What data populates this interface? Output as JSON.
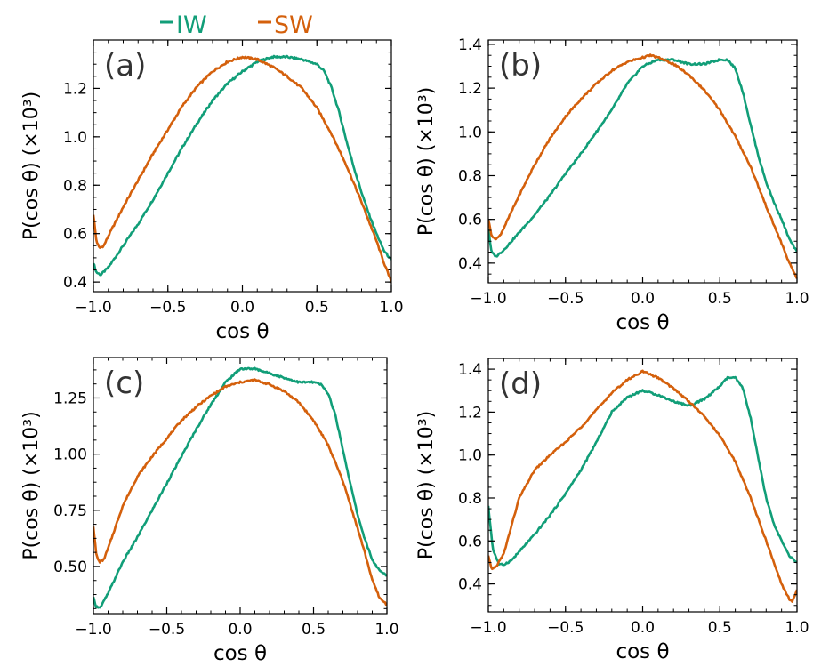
{
  "legend": [
    {
      "label": "IW",
      "color": "#119e78"
    },
    {
      "label": "SW",
      "color": "#d4600c"
    }
  ],
  "chart_data": [
    {
      "panel": "(a)",
      "type": "line",
      "xlabel": "cos θ",
      "ylabel": "P(cos θ) (×10³)",
      "xlim": [
        -1.0,
        1.0
      ],
      "ylim": [
        0.36,
        1.4
      ],
      "yticks": [
        0.4,
        0.6,
        0.8,
        1.0,
        1.2
      ],
      "ytick_labels": [
        "0.4",
        "0.6",
        "0.8",
        "1.0",
        "1.2"
      ],
      "xticks": [
        -1.0,
        -0.5,
        0.0,
        0.5,
        1.0
      ],
      "xtick_labels": [
        "−1.0",
        "−0.5",
        "0.0",
        "0.5",
        "1.0"
      ],
      "series": [
        {
          "name": "IW",
          "color": "#119e78",
          "x": [
            -1.0,
            -0.98,
            -0.95,
            -0.9,
            -0.8,
            -0.7,
            -0.6,
            -0.5,
            -0.4,
            -0.3,
            -0.2,
            -0.1,
            0.0,
            0.1,
            0.2,
            0.3,
            0.4,
            0.5,
            0.55,
            0.6,
            0.65,
            0.7,
            0.75,
            0.8,
            0.85,
            0.9,
            0.95,
            1.0
          ],
          "y": [
            0.48,
            0.44,
            0.43,
            0.46,
            0.55,
            0.64,
            0.74,
            0.85,
            0.96,
            1.06,
            1.15,
            1.22,
            1.27,
            1.31,
            1.33,
            1.33,
            1.32,
            1.3,
            1.27,
            1.2,
            1.1,
            0.98,
            0.87,
            0.77,
            0.68,
            0.6,
            0.53,
            0.49
          ]
        },
        {
          "name": "SW",
          "color": "#d4600c",
          "x": [
            -1.0,
            -0.98,
            -0.96,
            -0.93,
            -0.9,
            -0.8,
            -0.7,
            -0.6,
            -0.5,
            -0.4,
            -0.3,
            -0.2,
            -0.1,
            0.0,
            0.1,
            0.2,
            0.3,
            0.4,
            0.5,
            0.6,
            0.7,
            0.8,
            0.9,
            0.95,
            1.0
          ],
          "y": [
            0.68,
            0.57,
            0.54,
            0.55,
            0.59,
            0.71,
            0.82,
            0.93,
            1.03,
            1.13,
            1.21,
            1.27,
            1.31,
            1.33,
            1.32,
            1.29,
            1.25,
            1.2,
            1.12,
            1.01,
            0.88,
            0.73,
            0.57,
            0.48,
            0.4
          ]
        }
      ]
    },
    {
      "panel": "(b)",
      "type": "line",
      "xlabel": "cos θ",
      "ylabel": "P(cos θ) (×10³)",
      "xlim": [
        -1.0,
        1.0
      ],
      "ylim": [
        0.31,
        1.42
      ],
      "yticks": [
        0.4,
        0.6,
        0.8,
        1.0,
        1.2,
        1.4
      ],
      "ytick_labels": [
        "0.4",
        "0.6",
        "0.8",
        "1.0",
        "1.2",
        "1.4"
      ],
      "xticks": [
        -1.0,
        -0.5,
        0.0,
        0.5,
        1.0
      ],
      "xtick_labels": [
        "−1.0",
        "−0.5",
        "0.0",
        "0.5",
        "1.0"
      ],
      "series": [
        {
          "name": "IW",
          "color": "#119e78",
          "x": [
            -1.0,
            -0.98,
            -0.95,
            -0.9,
            -0.8,
            -0.7,
            -0.6,
            -0.5,
            -0.4,
            -0.3,
            -0.2,
            -0.1,
            0.0,
            0.1,
            0.2,
            0.3,
            0.4,
            0.5,
            0.55,
            0.6,
            0.65,
            0.7,
            0.75,
            0.8,
            0.85,
            0.9,
            0.95,
            1.0
          ],
          "y": [
            0.56,
            0.45,
            0.43,
            0.46,
            0.54,
            0.62,
            0.71,
            0.81,
            0.9,
            1.0,
            1.1,
            1.22,
            1.3,
            1.33,
            1.33,
            1.31,
            1.31,
            1.33,
            1.33,
            1.29,
            1.18,
            1.03,
            0.89,
            0.77,
            0.68,
            0.6,
            0.51,
            0.45
          ]
        },
        {
          "name": "SW",
          "color": "#d4600c",
          "x": [
            -1.0,
            -0.98,
            -0.96,
            -0.93,
            -0.9,
            -0.8,
            -0.7,
            -0.6,
            -0.5,
            -0.4,
            -0.3,
            -0.2,
            -0.1,
            0.0,
            0.05,
            0.1,
            0.2,
            0.3,
            0.4,
            0.5,
            0.6,
            0.7,
            0.8,
            0.9,
            0.95,
            1.0
          ],
          "y": [
            0.6,
            0.53,
            0.51,
            0.52,
            0.56,
            0.71,
            0.85,
            0.97,
            1.07,
            1.15,
            1.22,
            1.28,
            1.32,
            1.34,
            1.35,
            1.34,
            1.31,
            1.26,
            1.19,
            1.1,
            0.98,
            0.84,
            0.66,
            0.49,
            0.4,
            0.33
          ]
        }
      ]
    },
    {
      "panel": "(c)",
      "type": "line",
      "xlabel": "cos θ",
      "ylabel": "P(cos θ) (×10³)",
      "xlim": [
        -1.0,
        1.0
      ],
      "ylim": [
        0.29,
        1.43
      ],
      "yticks": [
        0.5,
        0.75,
        1.0,
        1.25
      ],
      "ytick_labels": [
        "0.50",
        "0.75",
        "1.00",
        "1.25"
      ],
      "xticks": [
        -1.0,
        -0.5,
        0.0,
        0.5,
        1.0
      ],
      "xtick_labels": [
        "−1.0",
        "−0.5",
        "0.0",
        "0.5",
        "1.0"
      ],
      "series": [
        {
          "name": "IW",
          "color": "#119e78",
          "x": [
            -1.0,
            -0.98,
            -0.95,
            -0.9,
            -0.8,
            -0.7,
            -0.6,
            -0.5,
            -0.4,
            -0.3,
            -0.2,
            -0.1,
            0.0,
            0.1,
            0.2,
            0.3,
            0.4,
            0.5,
            0.55,
            0.6,
            0.65,
            0.7,
            0.75,
            0.8,
            0.85,
            0.9,
            0.95,
            1.0
          ],
          "y": [
            0.36,
            0.32,
            0.32,
            0.38,
            0.52,
            0.63,
            0.75,
            0.87,
            0.99,
            1.11,
            1.22,
            1.32,
            1.38,
            1.38,
            1.36,
            1.34,
            1.32,
            1.32,
            1.31,
            1.27,
            1.17,
            1.02,
            0.87,
            0.73,
            0.62,
            0.53,
            0.48,
            0.46
          ]
        },
        {
          "name": "SW",
          "color": "#d4600c",
          "x": [
            -1.0,
            -0.98,
            -0.96,
            -0.93,
            -0.9,
            -0.8,
            -0.7,
            -0.6,
            -0.5,
            -0.4,
            -0.3,
            -0.2,
            -0.1,
            0.0,
            0.1,
            0.2,
            0.3,
            0.4,
            0.5,
            0.6,
            0.7,
            0.8,
            0.85,
            0.9,
            0.95,
            1.0
          ],
          "y": [
            0.68,
            0.55,
            0.52,
            0.53,
            0.58,
            0.77,
            0.9,
            0.99,
            1.07,
            1.15,
            1.21,
            1.26,
            1.3,
            1.32,
            1.33,
            1.31,
            1.28,
            1.23,
            1.15,
            1.04,
            0.88,
            0.67,
            0.56,
            0.44,
            0.36,
            0.33
          ]
        }
      ]
    },
    {
      "panel": "(d)",
      "type": "line",
      "xlabel": "cos θ",
      "ylabel": "P(cos θ) (×10³)",
      "xlim": [
        -1.0,
        1.0
      ],
      "ylim": [
        0.27,
        1.45
      ],
      "yticks": [
        0.4,
        0.6,
        0.8,
        1.0,
        1.2,
        1.4
      ],
      "ytick_labels": [
        "0.4",
        "0.6",
        "0.8",
        "1.0",
        "1.2",
        "1.4"
      ],
      "xticks": [
        -1.0,
        -0.5,
        0.0,
        0.5,
        1.0
      ],
      "xtick_labels": [
        "−1.0",
        "−0.5",
        "0.0",
        "0.5",
        "1.0"
      ],
      "series": [
        {
          "name": "IW",
          "color": "#119e78",
          "x": [
            -1.0,
            -0.97,
            -0.93,
            -0.9,
            -0.85,
            -0.8,
            -0.7,
            -0.6,
            -0.5,
            -0.4,
            -0.3,
            -0.2,
            -0.1,
            0.0,
            0.1,
            0.2,
            0.3,
            0.4,
            0.5,
            0.55,
            0.6,
            0.65,
            0.7,
            0.75,
            0.8,
            0.85,
            0.9,
            0.95,
            1.0
          ],
          "y": [
            0.76,
            0.56,
            0.49,
            0.49,
            0.51,
            0.55,
            0.63,
            0.72,
            0.82,
            0.93,
            1.06,
            1.2,
            1.27,
            1.3,
            1.28,
            1.25,
            1.23,
            1.26,
            1.32,
            1.36,
            1.36,
            1.31,
            1.17,
            0.98,
            0.8,
            0.68,
            0.6,
            0.53,
            0.5
          ]
        },
        {
          "name": "SW",
          "color": "#d4600c",
          "x": [
            -1.0,
            -0.98,
            -0.95,
            -0.9,
            -0.8,
            -0.7,
            -0.6,
            -0.5,
            -0.4,
            -0.3,
            -0.2,
            -0.1,
            0.0,
            0.1,
            0.2,
            0.3,
            0.4,
            0.5,
            0.6,
            0.7,
            0.8,
            0.85,
            0.9,
            0.95,
            0.97,
            1.0
          ],
          "y": [
            0.53,
            0.47,
            0.48,
            0.54,
            0.8,
            0.93,
            1.0,
            1.06,
            1.13,
            1.21,
            1.29,
            1.35,
            1.39,
            1.36,
            1.31,
            1.25,
            1.18,
            1.09,
            0.97,
            0.8,
            0.6,
            0.5,
            0.4,
            0.33,
            0.32,
            0.37
          ]
        }
      ]
    }
  ]
}
